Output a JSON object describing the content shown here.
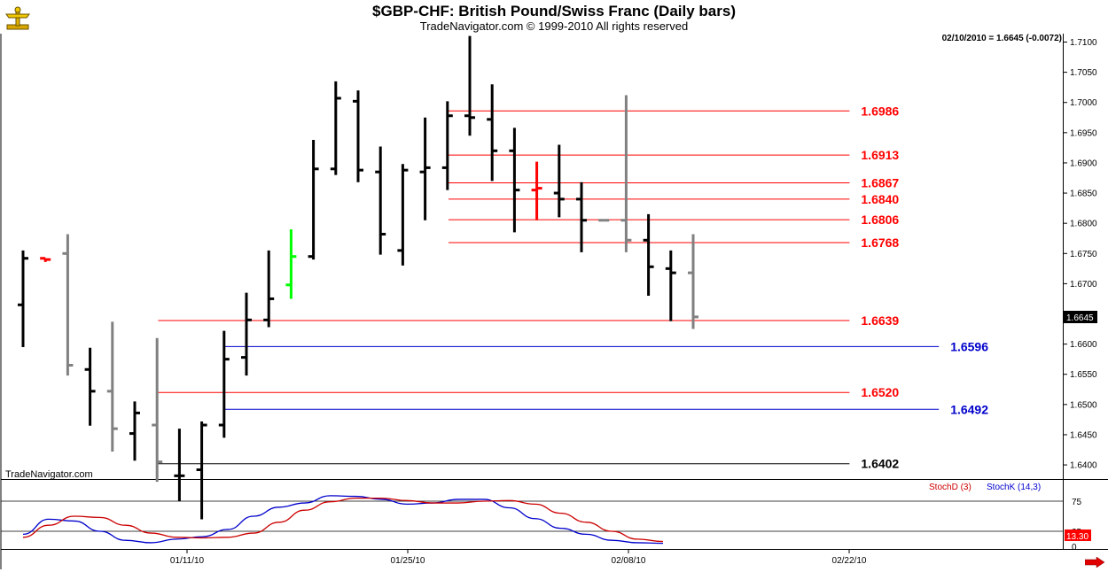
{
  "header": {
    "title": "$GBP-CHF:  British Pound/Swiss Franc  (Daily bars)",
    "subtitle": "TradeNavigator.com © 1999-2010 All rights reserved",
    "quote": "02/10/2010 = 1.6645 (-0.0072)"
  },
  "watermark": "TradeNavigator.com",
  "colors": {
    "up": "#000000",
    "down": "#808080",
    "highlight_red": "#ff0000",
    "highlight_green": "#00ff00",
    "level_red": "#ff0000",
    "level_blue": "#0000cc",
    "level_black": "#000000",
    "stoch_d": "#cc0000",
    "stoch_k": "#0000cc"
  },
  "chart_data": [
    {
      "type": "ohlc",
      "title": "$GBP-CHF:  British Pound/Swiss Franc  (Daily bars)",
      "ylim": [
        1.637,
        1.712
      ],
      "y_ticks": [
        "1.7100",
        "1.7050",
        "1.7000",
        "1.6950",
        "1.6900",
        "1.6850",
        "1.6800",
        "1.6750",
        "1.6700",
        "1.6650",
        "1.6600",
        "1.6550",
        "1.6500",
        "1.6450",
        "1.6400"
      ],
      "x_ticks": [
        "01/11/10",
        "01/25/10",
        "02/08/10",
        "02/22/10"
      ],
      "last_price": "1.6645",
      "bars": [
        {
          "o": 1.6665,
          "h": 1.6755,
          "l": 1.6595,
          "c": 1.6742,
          "color": "up"
        },
        {
          "o": 1.6742,
          "h": 1.6742,
          "l": 1.6736,
          "c": 1.674,
          "color": "red"
        },
        {
          "o": 1.675,
          "h": 1.6782,
          "l": 1.6548,
          "c": 1.6565,
          "color": "down"
        },
        {
          "o": 1.6558,
          "h": 1.6594,
          "l": 1.6465,
          "c": 1.6522,
          "color": "up"
        },
        {
          "o": 1.6522,
          "h": 1.6637,
          "l": 1.6422,
          "c": 1.646,
          "color": "down"
        },
        {
          "o": 1.6452,
          "h": 1.6505,
          "l": 1.6407,
          "c": 1.6486,
          "color": "up"
        },
        {
          "o": 1.6466,
          "h": 1.661,
          "l": 1.6372,
          "c": 1.6405,
          "color": "down"
        },
        {
          "o": 1.6382,
          "h": 1.646,
          "l": 1.634,
          "c": 1.6382,
          "color": "up"
        },
        {
          "o": 1.6392,
          "h": 1.6472,
          "l": 1.631,
          "c": 1.6466,
          "color": "up"
        },
        {
          "o": 1.6466,
          "h": 1.6622,
          "l": 1.6445,
          "c": 1.6575,
          "color": "up"
        },
        {
          "o": 1.6578,
          "h": 1.6685,
          "l": 1.6548,
          "c": 1.664,
          "color": "up"
        },
        {
          "o": 1.664,
          "h": 1.6755,
          "l": 1.6628,
          "c": 1.6675,
          "color": "up"
        },
        {
          "o": 1.6698,
          "h": 1.679,
          "l": 1.6675,
          "c": 1.6745,
          "color": "green"
        },
        {
          "o": 1.6745,
          "h": 1.6938,
          "l": 1.674,
          "c": 1.689,
          "color": "up"
        },
        {
          "o": 1.689,
          "h": 1.7035,
          "l": 1.688,
          "c": 1.7007,
          "color": "up"
        },
        {
          "o": 1.7002,
          "h": 1.702,
          "l": 1.6868,
          "c": 1.6888,
          "color": "up"
        },
        {
          "o": 1.6885,
          "h": 1.6927,
          "l": 1.6748,
          "c": 1.6782,
          "color": "up"
        },
        {
          "o": 1.6755,
          "h": 1.6898,
          "l": 1.673,
          "c": 1.6888,
          "color": "up"
        },
        {
          "o": 1.6885,
          "h": 1.6975,
          "l": 1.6805,
          "c": 1.6892,
          "color": "up"
        },
        {
          "o": 1.6892,
          "h": 1.7002,
          "l": 1.6855,
          "c": 1.6978,
          "color": "up"
        },
        {
          "o": 1.6978,
          "h": 1.711,
          "l": 1.6945,
          "c": 1.6975,
          "color": "up"
        },
        {
          "o": 1.6972,
          "h": 1.703,
          "l": 1.687,
          "c": 1.692,
          "color": "up"
        },
        {
          "o": 1.692,
          "h": 1.6958,
          "l": 1.6785,
          "c": 1.6855,
          "color": "up"
        },
        {
          "o": 1.6855,
          "h": 1.6902,
          "l": 1.6805,
          "c": 1.6858,
          "color": "red"
        },
        {
          "o": 1.685,
          "h": 1.693,
          "l": 1.681,
          "c": 1.684,
          "color": "up"
        },
        {
          "o": 1.684,
          "h": 1.6868,
          "l": 1.6752,
          "c": 1.6805,
          "color": "up"
        },
        {
          "o": 1.6805,
          "h": 1.6805,
          "l": 1.6805,
          "c": 1.6805,
          "color": "down"
        },
        {
          "o": 1.6805,
          "h": 1.7012,
          "l": 1.6752,
          "c": 1.6772,
          "color": "down"
        },
        {
          "o": 1.6772,
          "h": 1.6815,
          "l": 1.668,
          "c": 1.6728,
          "color": "up"
        },
        {
          "o": 1.6725,
          "h": 1.6755,
          "l": 1.6638,
          "c": 1.6718,
          "color": "up"
        },
        {
          "o": 1.6718,
          "h": 1.6782,
          "l": 1.6625,
          "c": 1.6645,
          "color": "down"
        }
      ],
      "levels": [
        {
          "value": 1.6986,
          "label": "1.6986",
          "color": "red",
          "start_bar": 20,
          "end_bar": 37
        },
        {
          "value": 1.6913,
          "label": "1.6913",
          "color": "red",
          "start_bar": 20,
          "end_bar": 37
        },
        {
          "value": 1.6867,
          "label": "1.6867",
          "color": "red",
          "start_bar": 20,
          "end_bar": 37
        },
        {
          "value": 1.684,
          "label": "1.6840",
          "color": "red",
          "start_bar": 20,
          "end_bar": 37
        },
        {
          "value": 1.6806,
          "label": "1.6806",
          "color": "red",
          "start_bar": 20,
          "end_bar": 37
        },
        {
          "value": 1.6768,
          "label": "1.6768",
          "color": "red",
          "start_bar": 20,
          "end_bar": 37
        },
        {
          "value": 1.6639,
          "label": "1.6639",
          "color": "red",
          "start_bar": 7,
          "end_bar": 37
        },
        {
          "value": 1.6596,
          "label": "1.6596",
          "color": "blue",
          "start_bar": 10,
          "end_bar": 41
        },
        {
          "value": 1.652,
          "label": "1.6520",
          "color": "red",
          "start_bar": 7,
          "end_bar": 37
        },
        {
          "value": 1.6492,
          "label": "1.6492",
          "color": "blue",
          "start_bar": 10,
          "end_bar": 41
        },
        {
          "value": 1.6402,
          "label": "1.6402",
          "color": "black",
          "start_bar": 7,
          "end_bar": 37
        }
      ]
    },
    {
      "type": "line",
      "series": [
        {
          "name": "StochD (3)",
          "values": [
            15,
            35,
            50,
            48,
            35,
            22,
            15,
            14,
            15,
            22,
            40,
            60,
            74,
            80,
            80,
            76,
            72,
            72,
            75,
            76,
            70,
            55,
            40,
            25,
            12,
            8
          ]
        },
        {
          "name": "StochK (14,3)",
          "values": [
            20,
            45,
            42,
            25,
            10,
            6,
            12,
            16,
            28,
            50,
            65,
            72,
            84,
            83,
            78,
            70,
            72,
            78,
            78,
            64,
            46,
            30,
            20,
            10,
            6,
            5
          ]
        }
      ],
      "ylim": [
        -20,
        110
      ],
      "y_ticks": [
        "75",
        "25",
        "0"
      ],
      "last_value": "13.30"
    }
  ]
}
